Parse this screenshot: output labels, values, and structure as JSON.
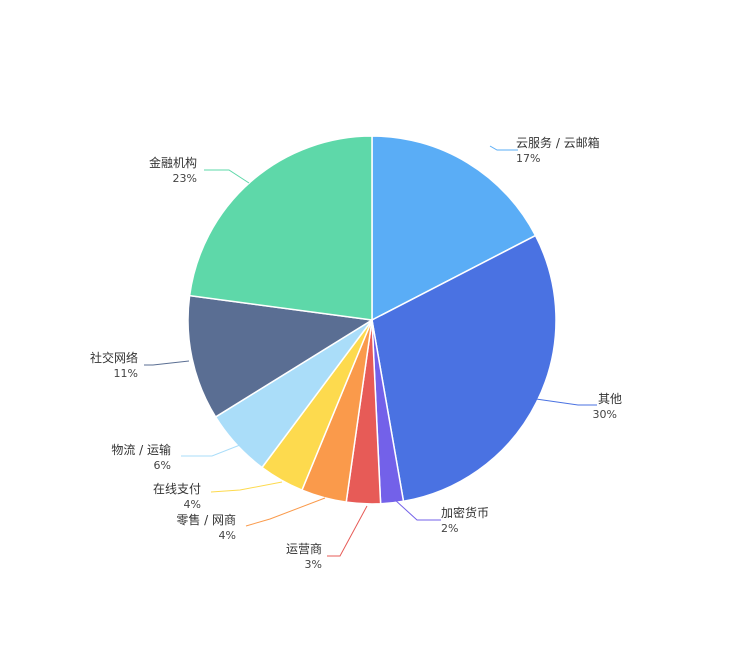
{
  "chart_data": {
    "type": "pie",
    "title": "",
    "slices": [
      {
        "label": "云服务 / 云邮箱",
        "percent_label": "17%",
        "value": 17.5,
        "color": "#5AADF6"
      },
      {
        "label": "其他",
        "percent_label": "30%",
        "value": 30,
        "color": "#4A72E2"
      },
      {
        "label": "加密货币",
        "percent_label": "2%",
        "value": 2,
        "color": "#7361E9"
      },
      {
        "label": "运营商",
        "percent_label": "3%",
        "value": 3,
        "color": "#E75B57"
      },
      {
        "label": "零售 / 网商",
        "percent_label": "4%",
        "value": 4,
        "color": "#FA9A4B"
      },
      {
        "label": "在线支付",
        "percent_label": "4%",
        "value": 4,
        "color": "#FDDA4E"
      },
      {
        "label": "物流 / 运输",
        "percent_label": "6%",
        "value": 6,
        "color": "#AADDF9"
      },
      {
        "label": "社交网络",
        "percent_label": "11%",
        "value": 11,
        "color": "#5A6E93"
      },
      {
        "label": "金融机构",
        "percent_label": "23%",
        "value": 23,
        "color": "#5ED8A9"
      }
    ],
    "legend": "none"
  }
}
